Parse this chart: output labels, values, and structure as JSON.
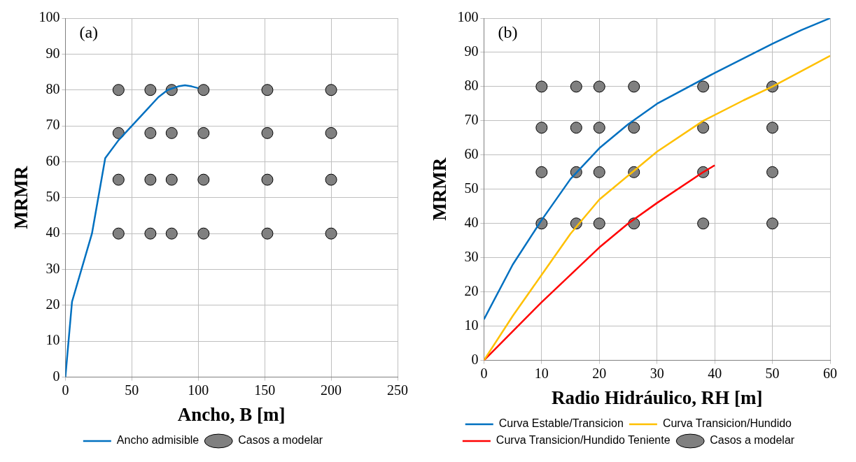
{
  "chart_data": [
    {
      "type": "line",
      "annotations": [
        "(a)"
      ],
      "xlabel": "Ancho, B [m]",
      "ylabel": "MRMR",
      "xlim": [
        0,
        250
      ],
      "xticks": [
        0,
        50,
        100,
        150,
        200,
        250
      ],
      "ylim": [
        0,
        100
      ],
      "yticks": [
        0,
        10,
        20,
        30,
        40,
        50,
        60,
        70,
        80,
        90,
        100
      ],
      "grid": true,
      "legend": "bottom",
      "series": [
        {
          "name": "Ancho admisible",
          "color": "#0070c0",
          "marker": "none",
          "x": [
            0,
            5,
            20,
            30,
            40,
            50,
            60,
            70,
            77,
            85,
            90,
            95,
            100
          ],
          "values": [
            0,
            21,
            40,
            61,
            66,
            70,
            74,
            78,
            80,
            81,
            81.3,
            81,
            80.5
          ]
        },
        {
          "type": "scatter",
          "name": "Casos a modelar",
          "color": "#808080",
          "marker": "circle",
          "x": [
            40,
            64,
            80,
            104,
            152,
            200,
            40,
            64,
            80,
            104,
            152,
            200,
            40,
            64,
            80,
            104,
            152,
            200,
            40,
            64,
            80,
            104,
            152,
            200
          ],
          "values": [
            80,
            80,
            80,
            80,
            80,
            80,
            68,
            68,
            68,
            68,
            68,
            68,
            55,
            55,
            55,
            55,
            55,
            55,
            40,
            40,
            40,
            40,
            40,
            40
          ]
        }
      ]
    },
    {
      "type": "line",
      "annotations": [
        "(b)"
      ],
      "xlabel": "Radio Hidráulico, RH [m]",
      "ylabel": "MRMR",
      "xlim": [
        0,
        60
      ],
      "xticks": [
        0,
        10,
        20,
        30,
        40,
        50,
        60
      ],
      "ylim": [
        0,
        100
      ],
      "yticks": [
        0,
        10,
        20,
        30,
        40,
        50,
        60,
        70,
        80,
        90,
        100
      ],
      "grid": true,
      "legend": "bottom",
      "series": [
        {
          "name": "Curva Estable/Transicion",
          "color": "#0070c0",
          "marker": "none",
          "x": [
            0,
            5,
            10,
            15,
            20,
            25,
            30,
            40,
            50,
            55,
            60
          ],
          "values": [
            12,
            28,
            41,
            53,
            62,
            69,
            75,
            84,
            92.5,
            96.5,
            100
          ]
        },
        {
          "name": "Curva Transicion/Hundido",
          "color": "#ffc000",
          "marker": "none",
          "x": [
            0,
            5,
            10,
            15,
            20,
            25,
            30,
            38,
            45,
            50,
            60
          ],
          "values": [
            0,
            13,
            25,
            37,
            47,
            54,
            61,
            70,
            76,
            80,
            89
          ]
        },
        {
          "name": "Curva Transicion/Hundido Teniente",
          "color": "#ff0000",
          "marker": "none",
          "x": [
            0,
            10,
            20,
            25,
            30,
            38,
            40
          ],
          "values": [
            0,
            17,
            33,
            40,
            46,
            55,
            57
          ]
        },
        {
          "type": "scatter",
          "name": "Casos a modelar",
          "color": "#808080",
          "marker": "circle",
          "x": [
            10,
            16,
            20,
            26,
            38,
            50,
            10,
            16,
            20,
            26,
            38,
            50,
            10,
            16,
            20,
            26,
            38,
            50,
            10,
            16,
            20,
            26,
            38,
            50
          ],
          "values": [
            80,
            80,
            80,
            80,
            80,
            80,
            68,
            68,
            68,
            68,
            68,
            68,
            55,
            55,
            55,
            55,
            55,
            55,
            40,
            40,
            40,
            40,
            40,
            40
          ]
        }
      ]
    }
  ]
}
